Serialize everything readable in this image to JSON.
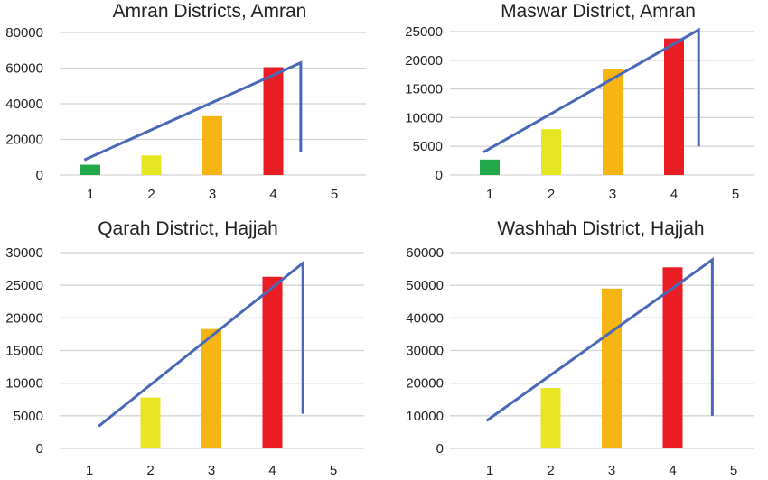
{
  "chart_data": [
    {
      "type": "bar",
      "title": "Amran Districts, Amran",
      "categories": [
        "1",
        "2",
        "3",
        "4",
        "5"
      ],
      "values": [
        5800,
        11000,
        33000,
        60500,
        null
      ],
      "bar_colors": [
        "#22a84a",
        "#e8e622",
        "#f7b514",
        "#ea1c24",
        null
      ],
      "ylim": [
        0,
        80000
      ],
      "yticks": [
        "80000",
        "60000",
        "40000",
        "20000",
        "0"
      ],
      "grid": true,
      "trendline": {
        "x_start": 0.9,
        "y_start": 8500,
        "x_end": 4.45,
        "y_end": 63000,
        "drop_to": 13000
      }
    },
    {
      "type": "bar",
      "title": "Maswar District, Amran",
      "categories": [
        "1",
        "2",
        "3",
        "4",
        "5"
      ],
      "values": [
        2700,
        8000,
        18400,
        23800,
        null
      ],
      "bar_colors": [
        "#22a84a",
        "#e8e622",
        "#f7b514",
        "#ea1c24",
        null
      ],
      "ylim": [
        0,
        25000
      ],
      "yticks": [
        "25000",
        "20000",
        "15000",
        "10000",
        "5000",
        "0"
      ],
      "grid": true,
      "trendline": {
        "x_start": 0.9,
        "y_start": 4000,
        "x_end": 4.4,
        "y_end": 25300,
        "drop_to": 5000
      }
    },
    {
      "type": "bar",
      "title": "Qarah District, Hajjah",
      "categories": [
        "1",
        "2",
        "3",
        "4",
        "5"
      ],
      "values": [
        null,
        7800,
        18300,
        26300,
        null
      ],
      "bar_colors": [
        "#22a84a",
        "#e8e622",
        "#f7b514",
        "#ea1c24",
        null
      ],
      "ylim": [
        0,
        30000
      ],
      "yticks": [
        "30000",
        "25000",
        "20000",
        "15000",
        "10000",
        "5000",
        "0"
      ],
      "grid": true,
      "trendline": {
        "x_start": 1.15,
        "y_start": 3400,
        "x_end": 4.5,
        "y_end": 28400,
        "drop_to": 5300
      }
    },
    {
      "type": "bar",
      "title": "Washhah District, Hajjah",
      "categories": [
        "1",
        "2",
        "3",
        "4",
        "5"
      ],
      "values": [
        null,
        18500,
        49000,
        55500,
        null
      ],
      "bar_colors": [
        "#22a84a",
        "#e8e622",
        "#f7b514",
        "#ea1c24",
        null
      ],
      "ylim": [
        0,
        60000
      ],
      "yticks": [
        "60000",
        "50000",
        "40000",
        "30000",
        "20000",
        "10000",
        "0"
      ],
      "grid": true,
      "trendline": {
        "x_start": 0.95,
        "y_start": 8500,
        "x_end": 4.65,
        "y_end": 57800,
        "drop_to": 10000
      }
    }
  ]
}
